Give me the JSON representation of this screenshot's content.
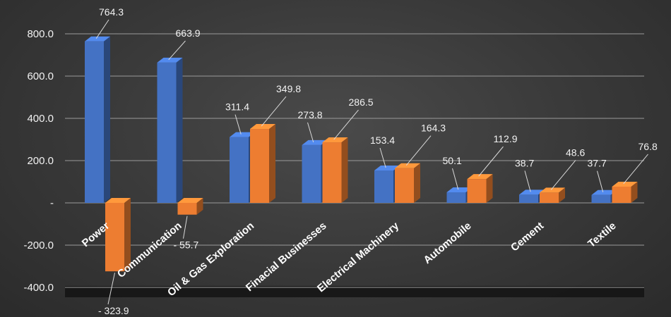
{
  "chart_data": {
    "type": "bar",
    "title": "",
    "xlabel": "",
    "ylabel": "",
    "categories": [
      "Power",
      "Communication",
      "Oil & Gas Exploration",
      "Finacial Businesses",
      "Electrical Machinery",
      "Automobile",
      "Cement",
      "Textile"
    ],
    "series": [
      {
        "values": [
          764.3,
          663.9,
          311.4,
          273.8,
          153.4,
          50.1,
          38.7,
          37.7
        ],
        "color": "#4472c4"
      },
      {
        "values": [
          -323.9,
          -55.7,
          349.8,
          286.5,
          164.3,
          112.9,
          48.6,
          76.8
        ],
        "color": "#ed7d31"
      }
    ],
    "data_labels": [
      [
        "764.3",
        "663.9",
        "311.4",
        "273.8",
        "153.4",
        "50.1",
        "38.7",
        "37.7"
      ],
      [
        "- 323.9",
        "- 55.7",
        "349.8",
        "286.5",
        "164.3",
        "112.9",
        "48.6",
        "76.8"
      ]
    ],
    "y_ticks": [
      {
        "value": 800,
        "label": "800.0"
      },
      {
        "value": 600,
        "label": "600.0"
      },
      {
        "value": 400,
        "label": "400.0"
      },
      {
        "value": 200,
        "label": "200.0"
      },
      {
        "value": 0,
        "label": "-"
      },
      {
        "value": -200,
        "label": "-200.0"
      },
      {
        "value": -400,
        "label": "-400.0"
      }
    ],
    "ylim": [
      -400,
      800
    ],
    "grid": true,
    "legend": "none",
    "style": "3d-clustered-column",
    "background_color": "#3a3a3a"
  }
}
